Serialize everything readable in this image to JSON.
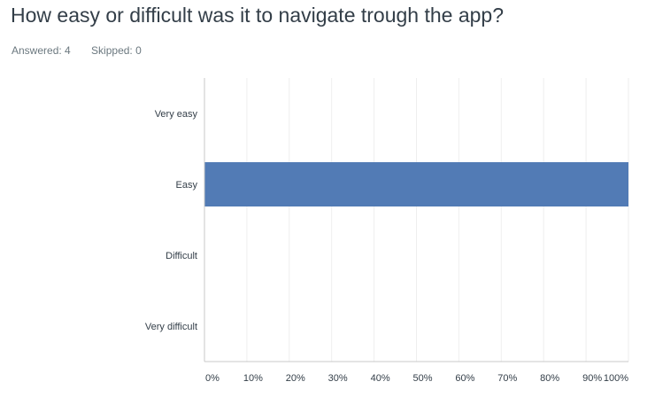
{
  "question": {
    "title": "How easy or difficult was it to navigate trough the app?",
    "answered": "Answered: 4",
    "skipped": "Skipped: 0"
  },
  "chart_data": {
    "type": "bar",
    "orientation": "horizontal",
    "categories": [
      "Very easy",
      "Easy",
      "Difficult",
      "Very difficult"
    ],
    "values": [
      0,
      100,
      0,
      0
    ],
    "xlim": [
      0,
      100
    ],
    "x_ticks": [
      "0%",
      "10%",
      "20%",
      "30%",
      "40%",
      "50%",
      "60%",
      "70%",
      "80%",
      "90%",
      "100%"
    ],
    "grid": true,
    "bar_color": "#527bb5",
    "grid_color": "#eeeeee",
    "axis_color": "#c8c8c8"
  }
}
